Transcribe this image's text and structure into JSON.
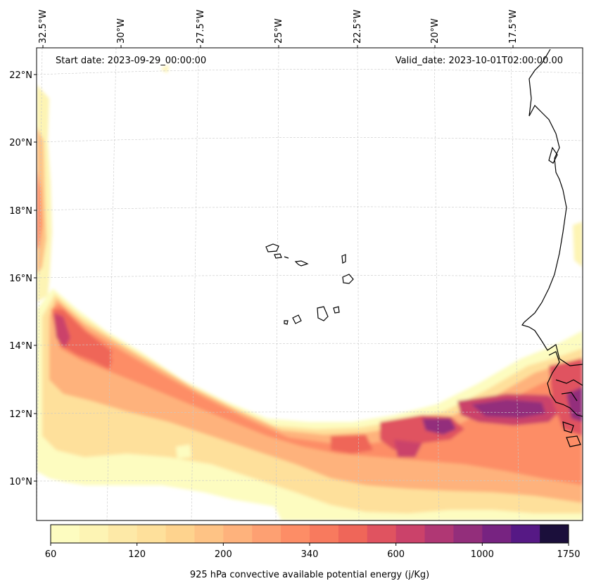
{
  "map": {
    "start_date": "Start date: 2023-09-29_00:00:00",
    "valid_date": "Valid_date: 2023-10-01T02:00:00.00",
    "lon_labels": [
      "32.5°W",
      "30°W",
      "27.5°W",
      "25°W",
      "22.5°W",
      "20°W",
      "17.5°W"
    ],
    "lat_labels": [
      "22°N",
      "20°N",
      "18°N",
      "16°N",
      "14°N",
      "12°N",
      "10°N"
    ],
    "colorbar": {
      "label": "925 hPa convective available potential energy (j/Kg)",
      "tick_labels": [
        "60",
        "120",
        "200",
        "340",
        "600",
        "1000",
        "1750"
      ],
      "colors": [
        "#fdfcc0",
        "#fdf4b4",
        "#fde9a7",
        "#fee09b",
        "#fed38e",
        "#fec385",
        "#feb27c",
        "#fda072",
        "#fd8d66",
        "#f87a5e",
        "#ef6659",
        "#e05360",
        "#cb426a",
        "#b03774",
        "#932e7b",
        "#772381",
        "#561985",
        "#1b0f3b"
      ]
    }
  }
}
